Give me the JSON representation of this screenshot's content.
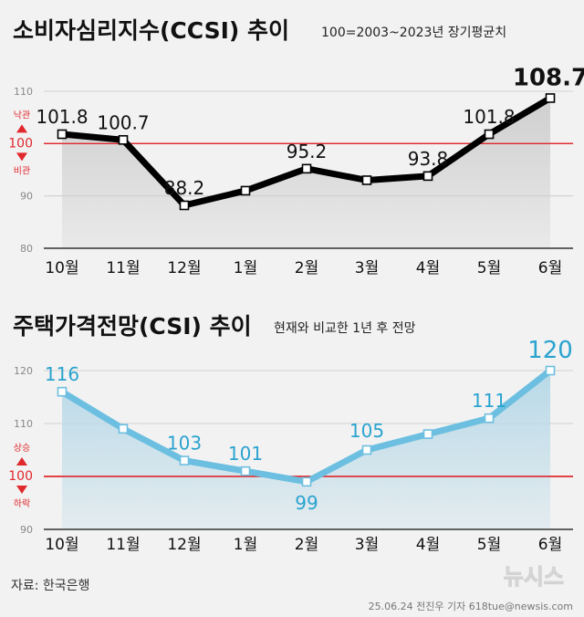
{
  "chart_data": [
    {
      "type": "line",
      "title": "소비자심리지수(CCSI) 추이",
      "subtitle": "100=2003~2023년 장기평균치",
      "categories": [
        "10월",
        "11월",
        "12월",
        "1월",
        "2월",
        "3월",
        "4월",
        "5월",
        "6월"
      ],
      "values": [
        101.8,
        100.7,
        88.2,
        91.0,
        95.2,
        93.0,
        93.8,
        101.8,
        108.7
      ],
      "data_labels": [
        "101.8",
        "100.7",
        "88.2",
        "",
        "95.2",
        "",
        "93.8",
        "101.8",
        "108.7"
      ],
      "ylim": [
        80,
        112
      ],
      "yticks": [
        "110",
        "100",
        "90",
        "80"
      ],
      "reference_line": 100,
      "upper_label": "낙관",
      "lower_label": "비관",
      "line_color": "#000000",
      "fill_color": "#cfcfcf",
      "reference_color": "#e0282d"
    },
    {
      "type": "line",
      "title": "주택가격전망(CSI) 추이",
      "subtitle": "현재와 비교한 1년 후 전망",
      "categories": [
        "10월",
        "11월",
        "12월",
        "1월",
        "2월",
        "3월",
        "4월",
        "5월",
        "6월"
      ],
      "values": [
        116,
        109,
        103,
        101,
        99,
        105,
        108,
        111,
        120
      ],
      "data_labels": [
        "116",
        "",
        "103",
        "101",
        "99",
        "105",
        "",
        "111",
        "120"
      ],
      "ylim": [
        90,
        122
      ],
      "yticks": [
        "120",
        "110",
        "100",
        "90"
      ],
      "reference_line": 100,
      "upper_label": "상승",
      "lower_label": "하락",
      "line_color": "#6cbfe0",
      "fill_color": "#b8d9e8",
      "label_color": "#2aa3cf",
      "reference_color": "#e0282d"
    }
  ],
  "footer": {
    "source": "자료: 한국은행",
    "credit": "25.06.24 전진우 기자 618tue@newsis.com",
    "watermark": "뉴시스"
  }
}
